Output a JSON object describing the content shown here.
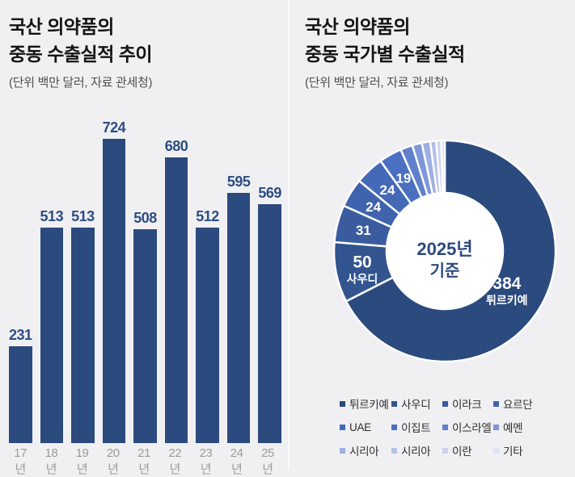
{
  "background_color": "#f0f0f2",
  "accent_navy": "#2b4a7e",
  "left_panel": {
    "title_line1": "국산 의약품의",
    "title_line2": "중동 수출실적 추이",
    "subtitle": "(단위 백만 달러, 자료 관세청)"
  },
  "right_panel": {
    "title_line1": "국산 의약품의",
    "title_line2": "중동 국가별 수출실적",
    "subtitle": "(단위 백만 달러, 자료 관세청)",
    "donut_center_line1": "2025년",
    "donut_center_line2": "기준"
  },
  "chart_data": [
    {
      "type": "bar",
      "title": "국산 의약품의 중동 수출실적 추이",
      "unit_source": "(단위 백만 달러, 자료 관세청)",
      "categories": [
        "17년",
        "18년",
        "19년",
        "20년",
        "21년",
        "22년",
        "23년",
        "24년",
        "25년"
      ],
      "values": [
        231,
        513,
        513,
        724,
        508,
        680,
        512,
        595,
        569
      ],
      "bar_color": "#2b4a7e",
      "value_label_color": "#2c4d84",
      "x_label_color": "#9c9ca0",
      "ylim": [
        0,
        776
      ],
      "grid": false,
      "value_labels_shown": true
    },
    {
      "type": "pie",
      "title": "국산 의약품의 중동 국가별 수출실적",
      "unit_source": "(단위 백만 달러, 자료 관세청)",
      "center_label": "2025년 기준",
      "donut": true,
      "start_angle_deg_from_top_clockwise": 0,
      "legend_position": "bottom",
      "segments": [
        {
          "name": "튀르키예",
          "value": 384,
          "color": "#2b4a7e",
          "label_lines": [
            "384",
            "튀르키예"
          ]
        },
        {
          "name": "사우디",
          "value": 50,
          "color": "#32548f",
          "label_lines": [
            "50",
            "사우디"
          ]
        },
        {
          "name": "이라크",
          "value": 31,
          "color": "#3a5c9f",
          "label_lines": [
            "31"
          ]
        },
        {
          "name": "요르단",
          "value": 24,
          "color": "#3f63ad",
          "label_lines": [
            "24"
          ]
        },
        {
          "name": "UAE",
          "value": 24,
          "color": "#4469b6",
          "label_lines": [
            "24"
          ]
        },
        {
          "name": "이집트",
          "value": 19,
          "color": "#4b70c1",
          "label_lines": [
            "19"
          ]
        },
        {
          "name": "이스라엘",
          "value": 10,
          "color": "#6080cc",
          "estimated": true
        },
        {
          "name": "예멘",
          "value": 8,
          "color": "#7f96d8",
          "estimated": true
        },
        {
          "name": "시리아",
          "value": 7,
          "color": "#9fafe2",
          "estimated": true
        },
        {
          "name": "시리아",
          "value": 5,
          "color": "#b4c1e9",
          "estimated": true
        },
        {
          "name": "이란",
          "value": 4,
          "color": "#c9d2f0",
          "estimated": true
        },
        {
          "name": "기타",
          "value": 3,
          "color": "#dee3f6",
          "estimated": true
        }
      ],
      "legend": [
        "튀르키예",
        "사우디",
        "이라크",
        "요르단",
        "UAE",
        "이집트",
        "이스라엘",
        "예멘",
        "시리아",
        "시리아",
        "이란",
        "기타"
      ]
    }
  ]
}
